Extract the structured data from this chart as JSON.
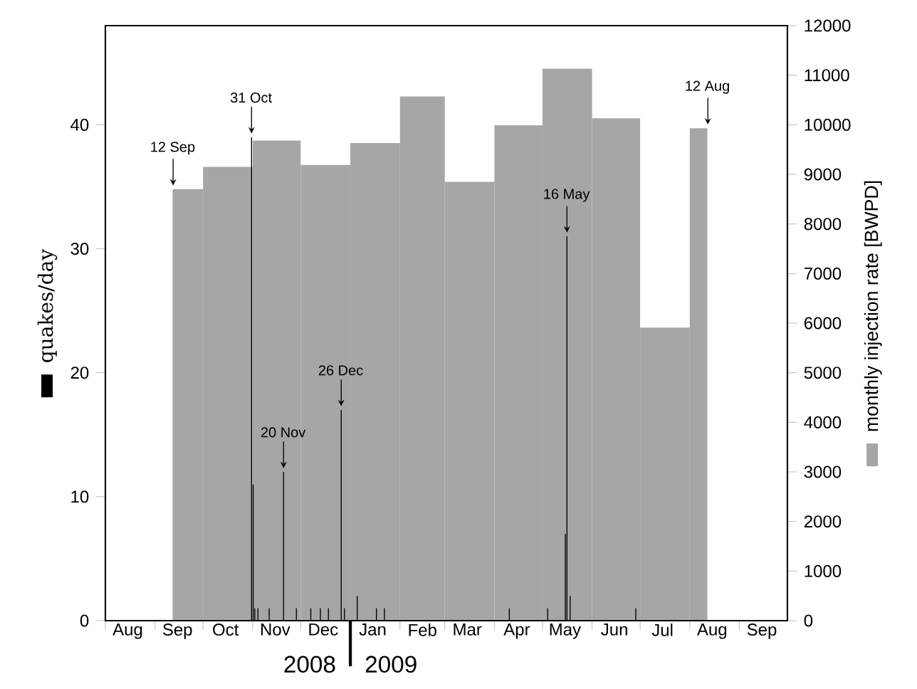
{
  "chart_data": {
    "type": "bar",
    "ylabel": "quakes/day",
    "y2label": "monthly injection rate [BWPD]",
    "xlim": [
      "2008-08-01",
      "2009-10-01"
    ],
    "xticks": [
      {
        "value": "2008-08-01",
        "label": null
      },
      {
        "value": "2008-09-01",
        "label": null
      },
      {
        "value": "2008-10-01",
        "label": null
      },
      {
        "value": "2008-11-01",
        "label": null
      },
      {
        "value": "2008-12-01",
        "label": null
      },
      {
        "value": "2009-01-01",
        "label": null
      },
      {
        "value": "2009-02-01",
        "label": null
      },
      {
        "value": "2009-03-01",
        "label": null
      },
      {
        "value": "2009-04-01",
        "label": null
      },
      {
        "value": "2009-05-01",
        "label": null
      },
      {
        "value": "2009-06-01",
        "label": null
      },
      {
        "value": "2009-07-01",
        "label": null
      },
      {
        "value": "2009-08-01",
        "label": null
      },
      {
        "value": "2009-09-01",
        "label": null
      },
      {
        "value": "2008-08-15",
        "label": "Aug"
      },
      {
        "value": "2008-09-15",
        "label": "Sep"
      },
      {
        "value": "2008-10-15",
        "label": "Oct"
      },
      {
        "value": "2008-11-15",
        "label": "Nov"
      },
      {
        "value": "2008-12-15",
        "label": "Dec"
      },
      {
        "value": "2009-01-15",
        "label": "Jan"
      },
      {
        "value": "2009-02-15",
        "label": "Feb"
      },
      {
        "value": "2009-03-15",
        "label": "Mar"
      },
      {
        "value": "2009-04-15",
        "label": "Apr"
      },
      {
        "value": "2009-05-15",
        "label": "May"
      },
      {
        "value": "2009-06-15",
        "label": "Jun"
      },
      {
        "value": "2009-07-15",
        "label": "Jul"
      },
      {
        "value": "2009-08-15",
        "label": "Aug"
      },
      {
        "value": "2009-09-15",
        "label": "Sep"
      }
    ],
    "ylim": [
      0,
      48
    ],
    "yticks": [
      0,
      10,
      20,
      30,
      40
    ],
    "y2lim": [
      0,
      12000
    ],
    "y2ticks": [
      0,
      1000,
      2000,
      3000,
      4000,
      5000,
      6000,
      7000,
      8000,
      9000,
      10000,
      11000,
      12000
    ],
    "series": [
      {
        "type": "histogram",
        "axis": "y2",
        "color": "#a6a6a6",
        "bins": [
          "2008-09-12",
          "2008-10-01",
          "2008-11-01",
          "2008-12-01",
          "2009-01-01",
          "2009-02-01",
          "2009-03-01",
          "2009-04-01",
          "2009-05-01",
          "2009-06-01",
          "2009-07-01",
          "2009-08-01",
          "2009-08-12"
        ],
        "values": [
          8700,
          9150,
          9680,
          9190,
          9630,
          10570,
          8850,
          9990,
          11130,
          10130,
          5910,
          9930
        ]
      },
      {
        "axis": "y",
        "color": "#000000",
        "x": [
          "2008-10-31",
          "2008-11-01",
          "2008-11-02",
          "2008-11-04",
          "2008-11-11",
          "2008-11-20",
          "2008-11-28",
          "2008-12-07",
          "2008-12-13",
          "2008-12-18",
          "2008-12-26",
          "2008-12-28",
          "2009-01-05",
          "2009-01-17",
          "2009-01-22",
          "2009-04-10",
          "2009-05-04",
          "2009-05-15",
          "2009-05-16",
          "2009-05-18",
          "2009-06-28"
        ],
        "values": [
          39,
          11,
          1,
          1,
          1,
          12,
          1,
          1,
          1,
          1,
          17,
          1,
          2,
          1,
          1,
          1,
          1,
          7,
          31,
          2,
          1
        ]
      }
    ],
    "annotations": [
      {
        "text": "12 Sep",
        "x": "2008-09-12",
        "y": 34.8
      },
      {
        "text": "31 Oct",
        "x": "2008-10-31",
        "y": 39
      },
      {
        "text": "20 Nov",
        "x": "2008-11-20",
        "y": 12
      },
      {
        "text": "26 Dec",
        "x": "2008-12-26",
        "y": 17
      },
      {
        "text": "16 May",
        "x": "2009-05-16",
        "y": 31
      },
      {
        "text": "12 Aug",
        "x": "2009-08-12",
        "y": 39.72
      },
      "2008",
      "2009"
    ]
  }
}
